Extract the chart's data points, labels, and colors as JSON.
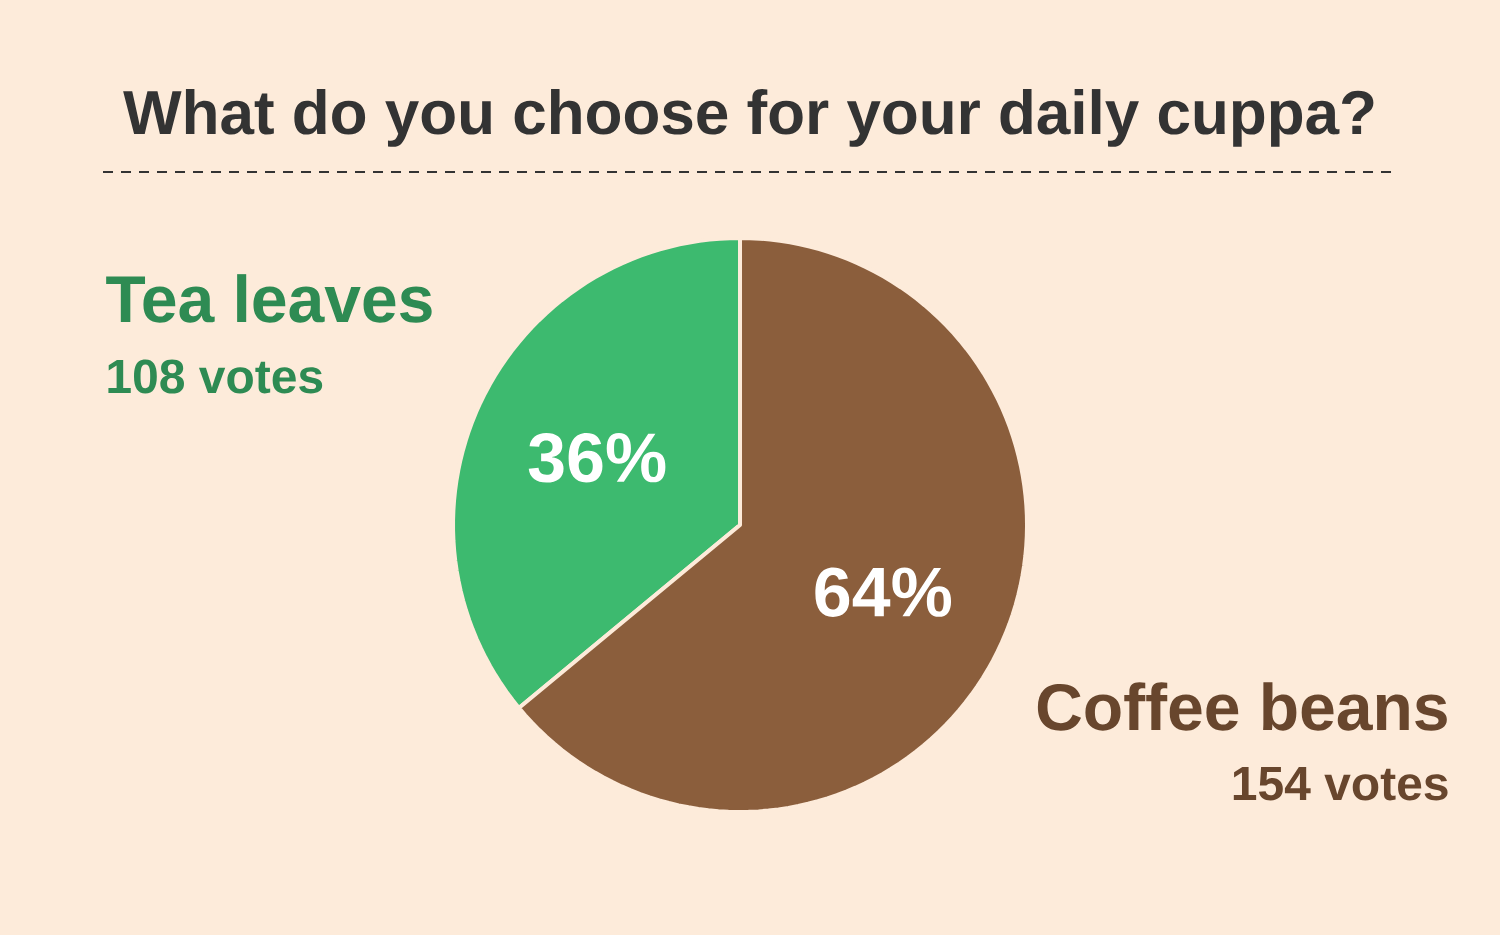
{
  "chart_data": {
    "type": "pie",
    "title": "What do you choose for your daily cuppa?",
    "categories": [
      "Tea leaves",
      "Coffee beans"
    ],
    "values": [
      36,
      64
    ],
    "colors": [
      "#3dba6f",
      "#8b5e3c"
    ],
    "value_labels": [
      "36%",
      "64%"
    ],
    "annotations": [
      "108 votes",
      "154 votes"
    ]
  }
}
